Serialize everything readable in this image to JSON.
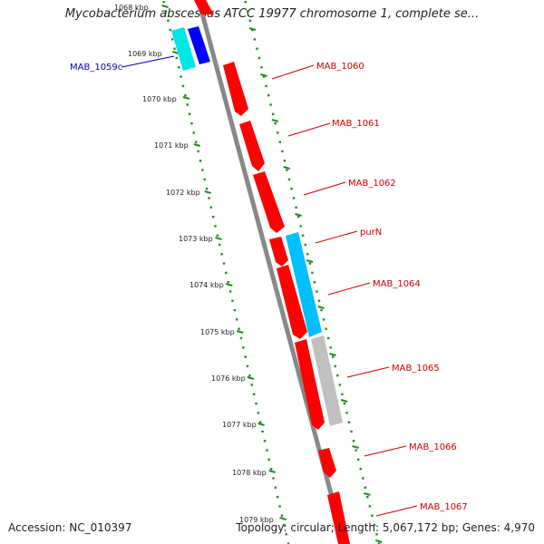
{
  "title": "Mycobacterium abscessus ATCC 19977 chromosome 1, complete se...",
  "accession": "Accession: NC_010397",
  "summary": "Topology: circular; Length: 5,067,172 bp; Genes: 4,970",
  "colors": {
    "forward_gene": "#ff0000",
    "reverse_gene": "#0000ff",
    "forward_cds": "#00bfff",
    "reverse_cds": "#00e5e5",
    "other_feature": "#c0c0c0",
    "forward_label": "#cc0000",
    "reverse_label": "#0000aa",
    "scale": "#228b22",
    "backbone": "#888888"
  },
  "scale_labels": [
    "1068 kbp",
    "1069 kbp",
    "1070 kbp",
    "1071 kbp",
    "1072 kbp",
    "1073 kbp",
    "1074 kbp",
    "1075 kbp",
    "1076 kbp",
    "1077 kbp",
    "1078 kbp",
    "1079 kbp"
  ],
  "gene_labels": [
    {
      "text": "MAB_1059c",
      "strand": "reverse"
    },
    {
      "text": "MAB_1060",
      "strand": "forward"
    },
    {
      "text": "MAB_1061",
      "strand": "forward"
    },
    {
      "text": "MAB_1062",
      "strand": "forward"
    },
    {
      "text": "purN",
      "strand": "forward"
    },
    {
      "text": "MAB_1064",
      "strand": "forward"
    },
    {
      "text": "MAB_1065",
      "strand": "forward"
    },
    {
      "text": "MAB_1066",
      "strand": "forward"
    },
    {
      "text": "MAB_1067",
      "strand": "forward"
    }
  ]
}
